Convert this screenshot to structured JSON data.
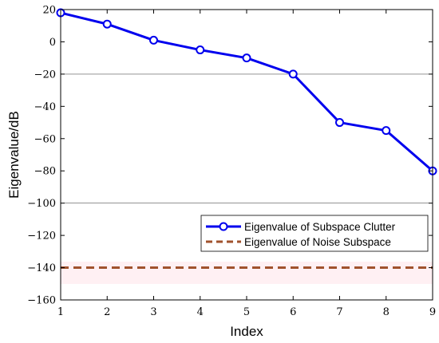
{
  "chart_data": {
    "type": "line",
    "title": "",
    "xlabel": "Index",
    "ylabel": "Eigenvalue/dB",
    "xlim": [
      1,
      9
    ],
    "ylim": [
      -160,
      20
    ],
    "x_ticks": [
      "1",
      "2",
      "3",
      "4",
      "5",
      "6",
      "7",
      "8",
      "9"
    ],
    "y_ticks": [
      "20",
      "0",
      "−20",
      "−40",
      "−60",
      "−80",
      "−100",
      "−120",
      "−140",
      "−160"
    ],
    "x_tick_values": [
      1,
      2,
      3,
      4,
      5,
      6,
      7,
      8,
      9
    ],
    "y_tick_values": [
      20,
      0,
      -20,
      -40,
      -60,
      -80,
      -100,
      -120,
      -140,
      -160
    ],
    "grid_y_lines": [
      -20,
      -100
    ],
    "series": [
      {
        "name": "Eigenvalue of Subspace Clutter",
        "x": [
          1,
          2,
          3,
          4,
          5,
          6,
          7,
          8,
          9
        ],
        "y": [
          18,
          11,
          1,
          -5,
          -10,
          -20,
          -50,
          -55,
          -80
        ],
        "color": "#0000ee",
        "marker": "circle",
        "line_style": "solid"
      },
      {
        "name": "Eigenvalue of Noise Subspace",
        "x": [
          1,
          9
        ],
        "y": [
          -140,
          -140
        ],
        "color": "#a0522d",
        "line_style": "dashed"
      }
    ],
    "legend": {
      "placement": "lower-right",
      "entries": [
        "Eigenvalue of Subspace Clutter",
        "Eigenvalue of Noise Subspace"
      ]
    }
  }
}
